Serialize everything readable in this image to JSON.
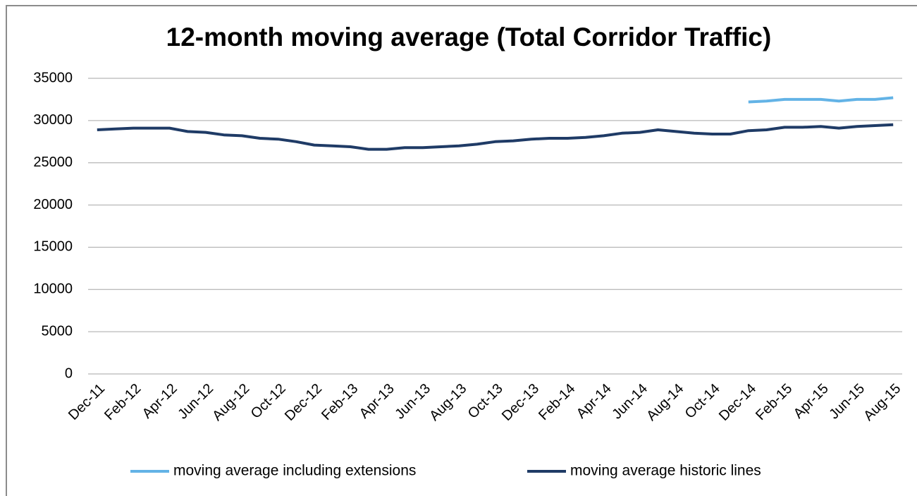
{
  "chart_data": {
    "type": "line",
    "title": "12-month moving average (Total Corridor Traffic)",
    "categories": [
      "Dec-11",
      null,
      "Feb-12",
      null,
      "Apr-12",
      null,
      "Jun-12",
      null,
      "Aug-12",
      null,
      "Oct-12",
      null,
      "Dec-12",
      null,
      "Feb-13",
      null,
      "Apr-13",
      null,
      "Jun-13",
      null,
      "Aug-13",
      null,
      "Oct-13",
      null,
      "Dec-13",
      null,
      "Feb-14",
      null,
      "Apr-14",
      null,
      "Jun-14",
      null,
      "Aug-14",
      null,
      "Oct-14",
      null,
      "Dec-14",
      null,
      "Feb-15",
      null,
      "Apr-15",
      null,
      "Jun-15",
      null,
      "Aug-15"
    ],
    "series": [
      {
        "name": "moving average including extensions",
        "color": "#63b3e6",
        "values": [
          null,
          null,
          null,
          null,
          null,
          null,
          null,
          null,
          null,
          null,
          null,
          null,
          null,
          null,
          null,
          null,
          null,
          null,
          null,
          null,
          null,
          null,
          null,
          null,
          null,
          null,
          null,
          null,
          null,
          null,
          null,
          null,
          null,
          null,
          null,
          null,
          32200,
          32300,
          32500,
          32500,
          32500,
          32300,
          32500,
          32500,
          32700
        ]
      },
      {
        "name": "moving average historic lines",
        "color": "#1f3b66",
        "values": [
          28900,
          29000,
          29100,
          29100,
          29100,
          28700,
          28600,
          28300,
          28200,
          27900,
          27800,
          27500,
          27100,
          27000,
          26900,
          26600,
          26600,
          26800,
          26800,
          26900,
          27000,
          27200,
          27500,
          27600,
          27800,
          27900,
          27900,
          28000,
          28200,
          28500,
          28600,
          28900,
          28700,
          28500,
          28400,
          28400,
          28800,
          28900,
          29200,
          29200,
          29300,
          29100,
          29300,
          29400,
          29500
        ]
      }
    ],
    "ylim": [
      0,
      35000
    ],
    "yticks": [
      0,
      5000,
      10000,
      15000,
      20000,
      25000,
      30000,
      35000
    ],
    "grid": true,
    "legend": "bottom"
  }
}
